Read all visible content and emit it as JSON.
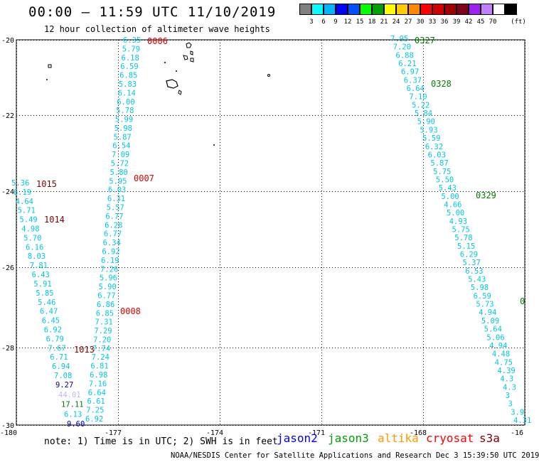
{
  "header": {
    "title": "00:00 – 11:59 UTC 11/10/2019",
    "subtitle": "12 hour collection of altimeter wave heights"
  },
  "legend": {
    "unit": "(ft)",
    "colors": [
      "#808080",
      "#00ffff",
      "#00b4ff",
      "#0000ff",
      "#0050ff",
      "#00ff00",
      "#00a000",
      "#ffff00",
      "#ffcc00",
      "#ff8800",
      "#ff0000",
      "#d00000",
      "#a00000",
      "#800020",
      "#a020f0",
      "#c080ff",
      "#ffffff",
      "#000000"
    ],
    "labels": [
      "3",
      "6",
      "9",
      "12",
      "15",
      "18",
      "21",
      "24",
      "27",
      "30",
      "33",
      "36",
      "39",
      "42",
      "45",
      "70"
    ]
  },
  "axes": {
    "x_ticks": [
      "-180",
      "-177",
      "-174",
      "-171",
      "-168",
      "-16"
    ],
    "y_ticks": [
      "-20",
      "-22",
      "-24",
      "-26",
      "-28",
      "-30"
    ]
  },
  "tracks": [
    {
      "color": "#00c8e0",
      "values": [
        "6.35",
        "5.79",
        "6.18",
        "6.59",
        "6.85",
        "5.83",
        "6.14",
        "6.00",
        "5.78",
        "5.99",
        "5.98",
        "5.87",
        "6.54",
        "7.09",
        "5.72",
        "5.80",
        "5.95",
        "6.03",
        "6.31",
        "5.57",
        "6.77",
        "6.28",
        "6.77",
        "6.34",
        "6.92",
        "6.19",
        "7.26",
        "5.96",
        "5.90",
        "6.77",
        "6.86",
        "6.85",
        "7.31",
        "7.29",
        "7.20",
        "7.74",
        "7.24",
        "6.81",
        "6.98",
        "7.16",
        "6.64",
        "6.61",
        "7.25",
        "6.92"
      ]
    },
    {
      "color": "#00c8e0",
      "values": [
        "5.36",
        "6.19",
        "4.64",
        "5.71",
        "5.49",
        "4.98",
        "5.70",
        "6.16",
        "8.03",
        "7.81",
        "6.43",
        "5.91",
        "5.85",
        "5.46",
        "6.47",
        "6.45",
        "6.92",
        "6.79",
        "7.67",
        "6.71",
        "6.94",
        "7.08"
      ]
    },
    {
      "values": [
        "9.27",
        "44.01",
        "17.11",
        "6.13",
        "9.60"
      ],
      "colors": [
        "#0000a0",
        "#c8b4ff",
        "#008000",
        "#00c8e0",
        "#0000c0"
      ]
    },
    {
      "color": "#00c8e0",
      "values": [
        "7.95",
        "7.20",
        "6.88",
        "6.21",
        "6.97",
        "6.37",
        "6.64",
        "7.10",
        "5.22",
        "5.84",
        "5.90",
        "5.93",
        "5.59",
        "6.32",
        "6.03",
        "5.87",
        "5.75",
        "5.50",
        "5.43",
        "5.00",
        "4.66",
        "5.00",
        "4.93",
        "5.75",
        "5.78",
        "5.15",
        "6.29",
        "5.37",
        "6.53",
        "5.43",
        "5.98",
        "6.59",
        "5.73",
        "4.94",
        "5.09",
        "5.64",
        "5.06",
        "4.94",
        "4.48",
        "4.75",
        "4.39",
        "4.3",
        "4.3",
        "3",
        "3",
        "3.9",
        "4.31"
      ]
    }
  ],
  "time_labels": [
    {
      "text": "0006",
      "color": "#e00000"
    },
    {
      "text": "0007",
      "color": "#e00000"
    },
    {
      "text": "0008",
      "color": "#e00000"
    },
    {
      "text": "1015",
      "color": "#800000"
    },
    {
      "text": "1014",
      "color": "#800000"
    },
    {
      "text": "1013",
      "color": "#800000"
    },
    {
      "text": "0327",
      "color": "#008000"
    },
    {
      "text": "0328",
      "color": "#008000"
    },
    {
      "text": "0329",
      "color": "#008000"
    },
    {
      "text": "0",
      "color": "#008000"
    }
  ],
  "footer": {
    "note": "note: 1) Time is in UTC; 2) SWH is in feet",
    "credit": "NOAA/NESDIS Center for Satellite Applications and Research   Dec  3 15:39:50 UTC 2019",
    "satellites": [
      {
        "name": "jason2",
        "color": "#0000ff"
      },
      {
        "name": "jason3",
        "color": "#00a000"
      },
      {
        "name": "altika",
        "color": "#ff9900"
      },
      {
        "name": "cryosat",
        "color": "#ff0000"
      },
      {
        "name": "s3a",
        "color": "#800000"
      }
    ]
  }
}
